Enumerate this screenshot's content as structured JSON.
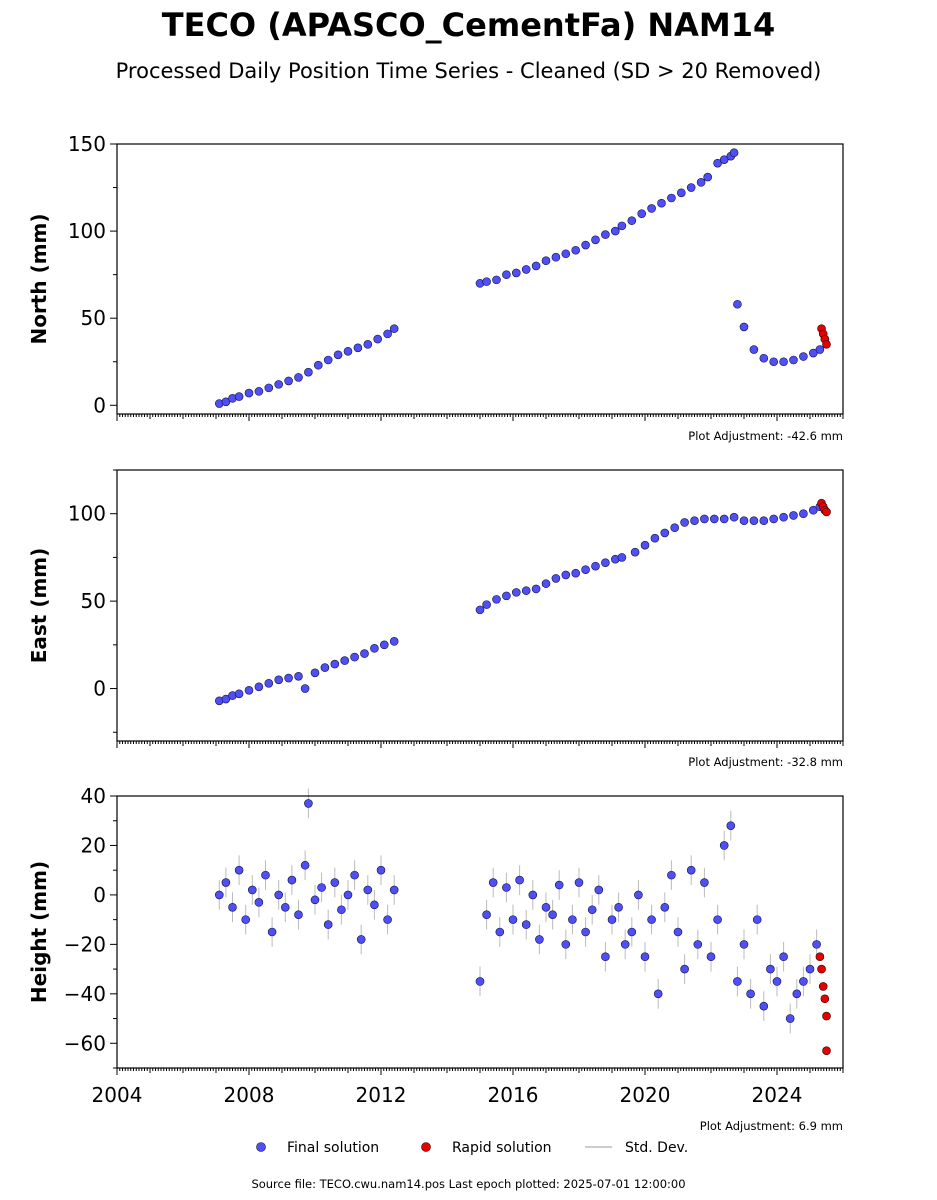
{
  "figure": {
    "title": "TECO (APASCO_CementFa) NAM14",
    "subtitle": "Processed Daily Position Time Series - Cleaned (SD > 20 Removed)",
    "footer": "Source file: TECO.cwu.nam14.pos  Last epoch plotted: 2025-07-01 12:00:00",
    "colors": {
      "final": "#4f4ff5",
      "rapid": "#e60000",
      "stddev": "#bbbbbb",
      "edge": "#111144"
    }
  },
  "legend": {
    "placement": "bottom-center",
    "items": [
      {
        "label": "Final solution",
        "marker": "circle",
        "color": "#4f4ff5"
      },
      {
        "label": "Rapid solution",
        "marker": "circle",
        "color": "#e60000"
      },
      {
        "label": "Std. Dev.",
        "marker": "line",
        "color": "#bbbbbb"
      }
    ]
  },
  "chart_data": [
    {
      "type": "scatter",
      "ylabel": "North (mm)",
      "adjustment": "Plot Adjustment: -42.6 mm",
      "xlim": [
        2004,
        2026
      ],
      "ylim": [
        -5,
        150
      ],
      "yticks": [
        0,
        50,
        100,
        150
      ],
      "xticks": [
        2004,
        2008,
        2012,
        2016,
        2020,
        2024
      ],
      "show_xtick_labels": false,
      "grid": false,
      "series": [
        {
          "name": "Final solution",
          "x": [
            2007.1,
            2007.3,
            2007.5,
            2007.7,
            2008.0,
            2008.3,
            2008.6,
            2008.9,
            2009.2,
            2009.5,
            2009.8,
            2010.1,
            2010.4,
            2010.7,
            2011.0,
            2011.3,
            2011.6,
            2011.9,
            2012.2,
            2012.4,
            2015.0,
            2015.2,
            2015.5,
            2015.8,
            2016.1,
            2016.4,
            2016.7,
            2017.0,
            2017.3,
            2017.6,
            2017.9,
            2018.2,
            2018.5,
            2018.8,
            2019.1,
            2019.3,
            2019.6,
            2019.9,
            2020.2,
            2020.5,
            2020.8,
            2021.1,
            2021.4,
            2021.7,
            2021.9,
            2022.2,
            2022.4,
            2022.6,
            2022.7,
            2022.8,
            2023.0,
            2023.3,
            2023.6,
            2023.9,
            2024.2,
            2024.5,
            2024.8,
            2025.1,
            2025.3
          ],
          "y": [
            1,
            2,
            4,
            5,
            7,
            8,
            10,
            12,
            14,
            16,
            19,
            23,
            26,
            29,
            31,
            33,
            35,
            38,
            41,
            44,
            70,
            71,
            72,
            75,
            76,
            78,
            80,
            83,
            85,
            87,
            89,
            92,
            95,
            98,
            100,
            103,
            106,
            110,
            113,
            116,
            119,
            122,
            125,
            128,
            131,
            139,
            141,
            143,
            145,
            58,
            45,
            32,
            27,
            25,
            25,
            26,
            28,
            30,
            32
          ]
        },
        {
          "name": "Rapid solution",
          "x": [
            2025.35,
            2025.4,
            2025.45,
            2025.5
          ],
          "y": [
            44,
            41,
            38,
            35
          ]
        }
      ]
    },
    {
      "type": "scatter",
      "ylabel": "East (mm)",
      "adjustment": "Plot Adjustment: -32.8 mm",
      "xlim": [
        2004,
        2026
      ],
      "ylim": [
        -30,
        125
      ],
      "yticks": [
        0,
        50,
        100
      ],
      "xticks": [
        2004,
        2008,
        2012,
        2016,
        2020,
        2024
      ],
      "show_xtick_labels": false,
      "grid": false,
      "series": [
        {
          "name": "Final solution",
          "x": [
            2007.1,
            2007.3,
            2007.5,
            2007.7,
            2008.0,
            2008.3,
            2008.6,
            2008.9,
            2009.2,
            2009.5,
            2009.7,
            2010.0,
            2010.3,
            2010.6,
            2010.9,
            2011.2,
            2011.5,
            2011.8,
            2012.1,
            2012.4,
            2015.0,
            2015.2,
            2015.5,
            2015.8,
            2016.1,
            2016.4,
            2016.7,
            2017.0,
            2017.3,
            2017.6,
            2017.9,
            2018.2,
            2018.5,
            2018.8,
            2019.1,
            2019.3,
            2019.7,
            2020.0,
            2020.3,
            2020.6,
            2020.9,
            2021.2,
            2021.5,
            2021.8,
            2022.1,
            2022.4,
            2022.7,
            2023.0,
            2023.3,
            2023.6,
            2023.9,
            2024.2,
            2024.5,
            2024.8,
            2025.1,
            2025.3
          ],
          "y": [
            -7,
            -6,
            -4,
            -3,
            -1,
            1,
            3,
            5,
            6,
            7,
            0,
            9,
            12,
            14,
            16,
            18,
            20,
            23,
            25,
            27,
            45,
            48,
            51,
            53,
            55,
            56,
            57,
            60,
            63,
            65,
            66,
            68,
            70,
            72,
            74,
            75,
            78,
            82,
            86,
            89,
            92,
            95,
            96,
            97,
            97,
            97,
            98,
            96,
            96,
            96,
            97,
            98,
            99,
            100,
            102,
            104
          ]
        },
        {
          "name": "Rapid solution",
          "x": [
            2025.35,
            2025.4,
            2025.45,
            2025.5
          ],
          "y": [
            106,
            104,
            102,
            101
          ]
        }
      ]
    },
    {
      "type": "scatter",
      "ylabel": "Height (mm)",
      "adjustment": "Plot Adjustment: 6.9 mm",
      "xlim": [
        2004,
        2026
      ],
      "ylim": [
        -70,
        40
      ],
      "yticks": [
        -60,
        -40,
        -20,
        0,
        20,
        40
      ],
      "xticks": [
        2004,
        2008,
        2012,
        2016,
        2020,
        2024
      ],
      "show_xtick_labels": true,
      "grid": false,
      "series": [
        {
          "name": "Final solution",
          "x": [
            2007.1,
            2007.3,
            2007.5,
            2007.7,
            2007.9,
            2008.1,
            2008.3,
            2008.5,
            2008.7,
            2008.9,
            2009.1,
            2009.3,
            2009.5,
            2009.7,
            2009.8,
            2010.0,
            2010.2,
            2010.4,
            2010.6,
            2010.8,
            2011.0,
            2011.2,
            2011.4,
            2011.6,
            2011.8,
            2012.0,
            2012.2,
            2012.4,
            2015.0,
            2015.2,
            2015.4,
            2015.6,
            2015.8,
            2016.0,
            2016.2,
            2016.4,
            2016.6,
            2016.8,
            2017.0,
            2017.2,
            2017.4,
            2017.6,
            2017.8,
            2018.0,
            2018.2,
            2018.4,
            2018.6,
            2018.8,
            2019.0,
            2019.2,
            2019.4,
            2019.6,
            2019.8,
            2020.0,
            2020.2,
            2020.4,
            2020.6,
            2020.8,
            2021.0,
            2021.2,
            2021.4,
            2021.6,
            2021.8,
            2022.0,
            2022.2,
            2022.4,
            2022.6,
            2022.8,
            2023.0,
            2023.2,
            2023.4,
            2023.6,
            2023.8,
            2024.0,
            2024.2,
            2024.4,
            2024.6,
            2024.8,
            2025.0,
            2025.2
          ],
          "y": [
            0,
            5,
            -5,
            10,
            -10,
            2,
            -3,
            8,
            -15,
            0,
            -5,
            6,
            -8,
            12,
            37,
            -2,
            3,
            -12,
            5,
            -6,
            0,
            8,
            -18,
            2,
            -4,
            10,
            -10,
            2,
            -35,
            -8,
            5,
            -15,
            3,
            -10,
            6,
            -12,
            0,
            -18,
            -5,
            -8,
            4,
            -20,
            -10,
            5,
            -15,
            -6,
            2,
            -25,
            -10,
            -5,
            -20,
            -15,
            0,
            -25,
            -10,
            -40,
            -5,
            8,
            -15,
            -30,
            10,
            -20,
            5,
            -25,
            -10,
            20,
            28,
            -35,
            -20,
            -40,
            -10,
            -45,
            -30,
            -35,
            -25,
            -50,
            -40,
            -35,
            -30,
            -20
          ]
        },
        {
          "name": "Rapid solution",
          "x": [
            2025.3,
            2025.35,
            2025.4,
            2025.45,
            2025.5,
            2025.5
          ],
          "y": [
            -25,
            -30,
            -37,
            -42,
            -49,
            -63
          ]
        }
      ]
    }
  ]
}
